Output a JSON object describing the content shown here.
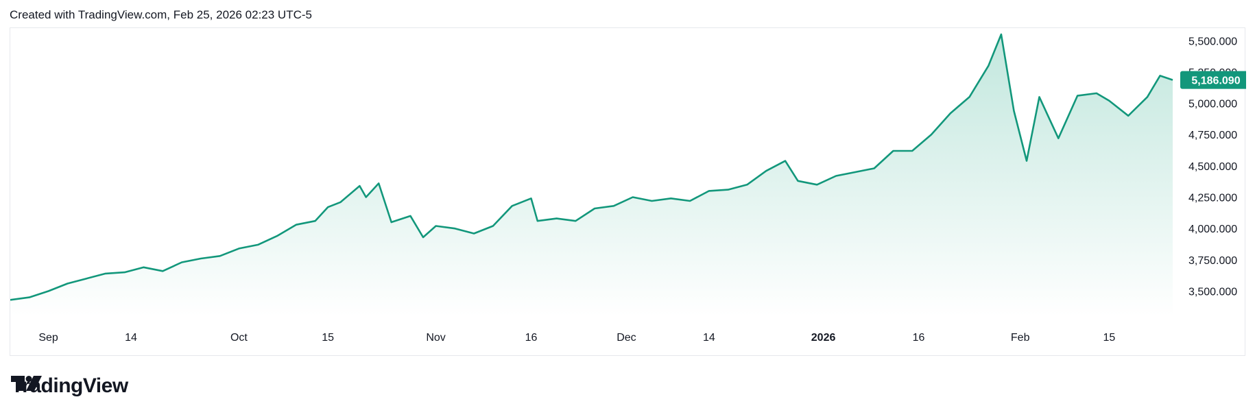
{
  "header": {
    "text": "Created with TradingView.com, Feb 25, 2026 02:23 UTC-5"
  },
  "brand": {
    "name": "TradingView"
  },
  "colors": {
    "line": "#12977b",
    "area_top": "#bfe6dc",
    "area_bottom": "#ffffff",
    "badge": "#12977b"
  },
  "chart_data": {
    "type": "area",
    "title": "",
    "xlabel": "",
    "ylabel": "",
    "ylim": [
      3300,
      5600
    ],
    "grid": false,
    "legend": "none",
    "last_value_label": "5,186.090",
    "y_ticks": [
      {
        "value": 5500,
        "label": "5,500.000"
      },
      {
        "value": 5250,
        "label": "5,250.000"
      },
      {
        "value": 5000,
        "label": "5,000.000"
      },
      {
        "value": 4750,
        "label": "4,750.000"
      },
      {
        "value": 4500,
        "label": "4,500.000"
      },
      {
        "value": 4250,
        "label": "4,250.000"
      },
      {
        "value": 4000,
        "label": "4,000.000"
      },
      {
        "value": 3750,
        "label": "3,750.000"
      },
      {
        "value": 3500,
        "label": "3,500.000"
      }
    ],
    "x_range": [
      "2025-08-26",
      "2026-02-25"
    ],
    "x_ticks": [
      {
        "date": "2025-09-01",
        "label": "Sep",
        "bold": false
      },
      {
        "date": "2025-09-14",
        "label": "14",
        "bold": false
      },
      {
        "date": "2025-10-01",
        "label": "Oct",
        "bold": false
      },
      {
        "date": "2025-10-15",
        "label": "15",
        "bold": false
      },
      {
        "date": "2025-11-01",
        "label": "Nov",
        "bold": false
      },
      {
        "date": "2025-11-16",
        "label": "16",
        "bold": false
      },
      {
        "date": "2025-12-01",
        "label": "Dec",
        "bold": false
      },
      {
        "date": "2025-12-14",
        "label": "14",
        "bold": false
      },
      {
        "date": "2026-01-01",
        "label": "2026",
        "bold": true
      },
      {
        "date": "2026-01-16",
        "label": "16",
        "bold": false
      },
      {
        "date": "2026-02-01",
        "label": "Feb",
        "bold": false
      },
      {
        "date": "2026-02-15",
        "label": "15",
        "bold": false
      }
    ],
    "series": [
      {
        "points": [
          [
            "2025-08-26",
            3430
          ],
          [
            "2025-08-29",
            3450
          ],
          [
            "2025-09-01",
            3500
          ],
          [
            "2025-09-04",
            3560
          ],
          [
            "2025-09-07",
            3600
          ],
          [
            "2025-09-10",
            3640
          ],
          [
            "2025-09-13",
            3650
          ],
          [
            "2025-09-16",
            3690
          ],
          [
            "2025-09-19",
            3660
          ],
          [
            "2025-09-22",
            3730
          ],
          [
            "2025-09-25",
            3760
          ],
          [
            "2025-09-28",
            3780
          ],
          [
            "2025-10-01",
            3840
          ],
          [
            "2025-10-04",
            3870
          ],
          [
            "2025-10-07",
            3940
          ],
          [
            "2025-10-10",
            4030
          ],
          [
            "2025-10-13",
            4060
          ],
          [
            "2025-10-15",
            4170
          ],
          [
            "2025-10-17",
            4210
          ],
          [
            "2025-10-20",
            4340
          ],
          [
            "2025-10-21",
            4250
          ],
          [
            "2025-10-23",
            4360
          ],
          [
            "2025-10-25",
            4050
          ],
          [
            "2025-10-28",
            4100
          ],
          [
            "2025-10-30",
            3930
          ],
          [
            "2025-11-01",
            4020
          ],
          [
            "2025-11-04",
            4000
          ],
          [
            "2025-11-07",
            3960
          ],
          [
            "2025-11-10",
            4020
          ],
          [
            "2025-11-13",
            4180
          ],
          [
            "2025-11-16",
            4240
          ],
          [
            "2025-11-17",
            4060
          ],
          [
            "2025-11-20",
            4080
          ],
          [
            "2025-11-23",
            4060
          ],
          [
            "2025-11-26",
            4160
          ],
          [
            "2025-11-29",
            4180
          ],
          [
            "2025-12-02",
            4250
          ],
          [
            "2025-12-05",
            4220
          ],
          [
            "2025-12-08",
            4240
          ],
          [
            "2025-12-11",
            4220
          ],
          [
            "2025-12-14",
            4300
          ],
          [
            "2025-12-17",
            4310
          ],
          [
            "2025-12-20",
            4350
          ],
          [
            "2025-12-23",
            4460
          ],
          [
            "2025-12-26",
            4540
          ],
          [
            "2025-12-28",
            4380
          ],
          [
            "2025-12-31",
            4350
          ],
          [
            "2026-01-03",
            4420
          ],
          [
            "2026-01-06",
            4450
          ],
          [
            "2026-01-09",
            4480
          ],
          [
            "2026-01-12",
            4620
          ],
          [
            "2026-01-15",
            4620
          ],
          [
            "2026-01-18",
            4750
          ],
          [
            "2026-01-21",
            4920
          ],
          [
            "2026-01-24",
            5050
          ],
          [
            "2026-01-27",
            5300
          ],
          [
            "2026-01-29",
            5550
          ],
          [
            "2026-01-31",
            4940
          ],
          [
            "2026-02-02",
            4540
          ],
          [
            "2026-02-04",
            5050
          ],
          [
            "2026-02-07",
            4720
          ],
          [
            "2026-02-10",
            5060
          ],
          [
            "2026-02-13",
            5080
          ],
          [
            "2026-02-15",
            5020
          ],
          [
            "2026-02-18",
            4900
          ],
          [
            "2026-02-21",
            5050
          ],
          [
            "2026-02-23",
            5220
          ],
          [
            "2026-02-25",
            5186.09
          ]
        ]
      }
    ]
  }
}
